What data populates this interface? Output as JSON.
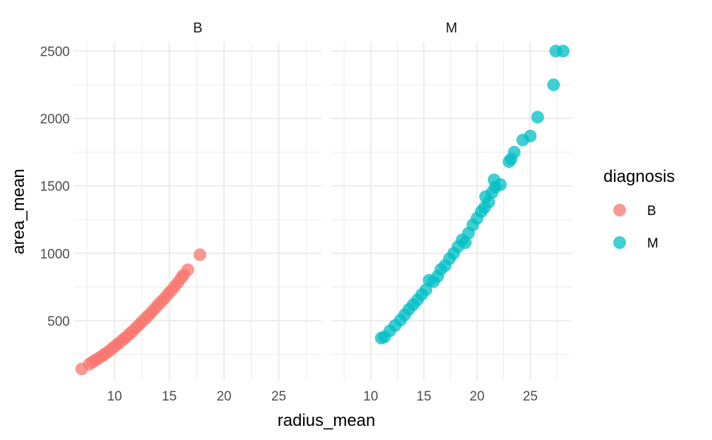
{
  "chart_data": {
    "type": "scatter",
    "facet_variable": "diagnosis",
    "xlabel": "radius_mean",
    "ylabel": "area_mean",
    "xlim": [
      6.3,
      28.9
    ],
    "ylim": [
      55,
      2565
    ],
    "x_ticks": [
      10,
      15,
      20,
      25
    ],
    "y_ticks": [
      500,
      1000,
      1500,
      2000,
      2500
    ],
    "grid": true,
    "legend": {
      "title": "diagnosis",
      "position": "right",
      "entries": [
        {
          "label": "B",
          "color": "#F8766D"
        },
        {
          "label": "M",
          "color": "#00BFC4"
        }
      ]
    },
    "panels": [
      {
        "label": "B",
        "color": "#F8766D",
        "points": [
          [
            7.0,
            143
          ],
          [
            7.7,
            178
          ],
          [
            8.0,
            195
          ],
          [
            8.3,
            210
          ],
          [
            8.6,
            225
          ],
          [
            8.9,
            240
          ],
          [
            9.2,
            258
          ],
          [
            9.5,
            275
          ],
          [
            9.8,
            295
          ],
          [
            10.1,
            315
          ],
          [
            10.4,
            335
          ],
          [
            10.7,
            355
          ],
          [
            11.0,
            375
          ],
          [
            11.3,
            398
          ],
          [
            11.6,
            420
          ],
          [
            11.9,
            443
          ],
          [
            12.2,
            467
          ],
          [
            12.5,
            492
          ],
          [
            12.8,
            515
          ],
          [
            13.1,
            540
          ],
          [
            13.4,
            565
          ],
          [
            13.7,
            592
          ],
          [
            14.0,
            620
          ],
          [
            14.3,
            645
          ],
          [
            14.6,
            670
          ],
          [
            14.9,
            700
          ],
          [
            15.2,
            725
          ],
          [
            15.5,
            755
          ],
          [
            15.8,
            785
          ],
          [
            16.1,
            818
          ],
          [
            16.3,
            840
          ],
          [
            16.7,
            878
          ],
          [
            17.8,
            990
          ]
        ]
      },
      {
        "label": "M",
        "color": "#00BFC4",
        "points": [
          [
            11.0,
            372
          ],
          [
            11.3,
            380
          ],
          [
            11.8,
            425
          ],
          [
            12.3,
            465
          ],
          [
            12.8,
            505
          ],
          [
            13.2,
            545
          ],
          [
            13.6,
            585
          ],
          [
            14.0,
            620
          ],
          [
            14.4,
            655
          ],
          [
            14.8,
            695
          ],
          [
            15.2,
            730
          ],
          [
            15.5,
            800
          ],
          [
            15.9,
            790
          ],
          [
            16.3,
            830
          ],
          [
            16.6,
            880
          ],
          [
            17.0,
            910
          ],
          [
            17.4,
            960
          ],
          [
            17.8,
            1000
          ],
          [
            18.2,
            1050
          ],
          [
            18.6,
            1100
          ],
          [
            18.9,
            1080
          ],
          [
            19.2,
            1150
          ],
          [
            19.6,
            1210
          ],
          [
            20.0,
            1260
          ],
          [
            20.4,
            1310
          ],
          [
            20.7,
            1340
          ],
          [
            20.8,
            1420
          ],
          [
            21.1,
            1380
          ],
          [
            21.4,
            1450
          ],
          [
            21.7,
            1490
          ],
          [
            21.6,
            1545
          ],
          [
            22.2,
            1510
          ],
          [
            23.0,
            1680
          ],
          [
            23.2,
            1700
          ],
          [
            23.5,
            1750
          ],
          [
            24.3,
            1840
          ],
          [
            25.0,
            1870
          ],
          [
            25.7,
            2010
          ],
          [
            27.2,
            2250
          ],
          [
            27.4,
            2500
          ],
          [
            28.1,
            2500
          ]
        ]
      }
    ]
  }
}
